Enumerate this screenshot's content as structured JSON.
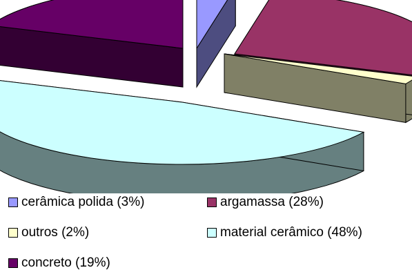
{
  "chart_data": {
    "type": "pie",
    "variant": "3d-exploded",
    "slices": [
      {
        "label": "cerâmica polida (3%)",
        "value": 3,
        "color": "#9999ff",
        "side_color": "#4d4d80"
      },
      {
        "label": "argamassa (28%)",
        "value": 28,
        "color": "#993366",
        "side_color": "#4d1a33"
      },
      {
        "label": "outros (2%)",
        "value": 2,
        "color": "#ffffcc",
        "side_color": "#808066"
      },
      {
        "label": "material cerâmico (48%)",
        "value": 48,
        "color": "#ccffff",
        "side_color": "#668080"
      },
      {
        "label": "concreto (19%)",
        "value": 19,
        "color": "#660066",
        "side_color": "#330033"
      }
    ],
    "legend_position": "bottom"
  }
}
